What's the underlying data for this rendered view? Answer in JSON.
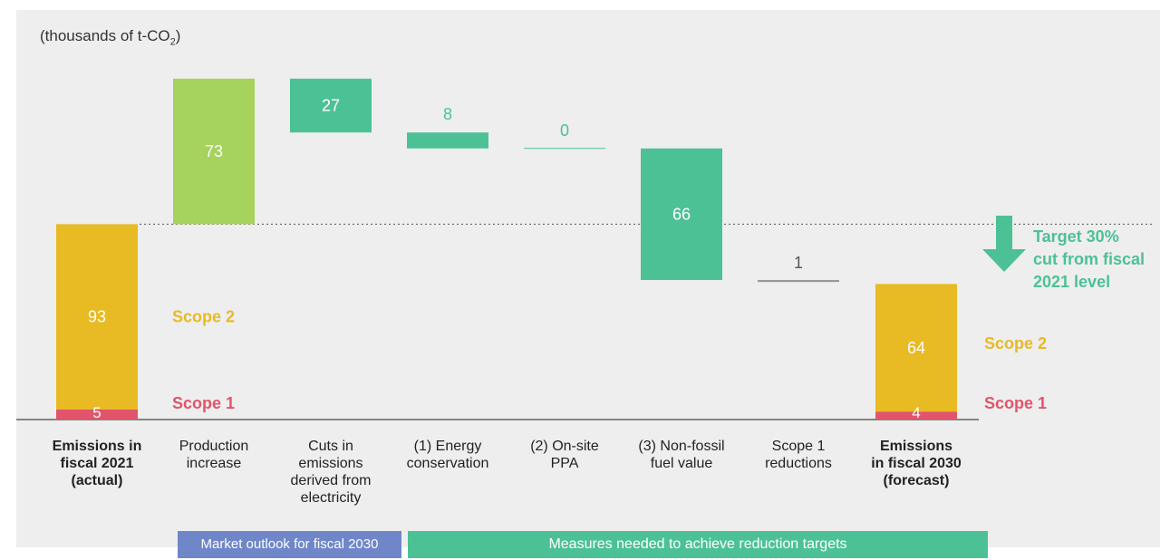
{
  "unit_label": "(thousands of t-CO",
  "unit_label_sub": "2",
  "unit_label_suffix": ")",
  "bands": {
    "market": "Market outlook for fiscal 2030",
    "measures": "Measures needed to achieve reduction targets"
  },
  "target_text": [
    "Target 30%",
    "cut from fiscal",
    "2021 level"
  ],
  "colors": {
    "scope2": "#e8ba23",
    "scope1": "#e2546b",
    "increase": "#a6d25e",
    "reduction": "#4cc196",
    "scope1_reduction": "#999999",
    "scope2_label": "#e8ba23",
    "scope1_label": "#e2546b",
    "target": "#4cc196"
  },
  "chart_data": {
    "type": "bar",
    "subtype": "waterfall",
    "ylim": [
      0,
      175
    ],
    "target_level": 98,
    "categories": [
      [
        "Emissions in",
        "fiscal 2021",
        "(actual)"
      ],
      [
        "Production",
        "increase"
      ],
      [
        "Cuts in",
        "emissions",
        "derived from",
        "electricity"
      ],
      [
        "(1) Energy",
        "conservation"
      ],
      [
        "(2) On-site",
        "PPA"
      ],
      [
        "(3) Non-fossil",
        "fuel value"
      ],
      [
        "Scope 1",
        "reductions"
      ],
      [
        "Emissions",
        "in fiscal 2030",
        "(forecast)"
      ]
    ],
    "bold_categories": [
      0,
      7
    ],
    "steps": [
      {
        "kind": "total",
        "scope1": 5,
        "scope2": 93,
        "scope1_label": "5",
        "scope2_label": "93"
      },
      {
        "kind": "increase",
        "value": 73,
        "label": "73"
      },
      {
        "kind": "decrease",
        "value": 27,
        "label": "27"
      },
      {
        "kind": "decrease",
        "value": 8,
        "label": "8"
      },
      {
        "kind": "decrease",
        "value": 0,
        "label": "0"
      },
      {
        "kind": "decrease",
        "value": 66,
        "label": "66"
      },
      {
        "kind": "scope1_decrease",
        "value": 1,
        "label": "1"
      },
      {
        "kind": "total",
        "scope1": 4,
        "scope2": 64,
        "scope1_label": "4",
        "scope2_label": "64"
      }
    ],
    "legend": {
      "scope2": "Scope 2",
      "scope1": "Scope 1"
    }
  }
}
